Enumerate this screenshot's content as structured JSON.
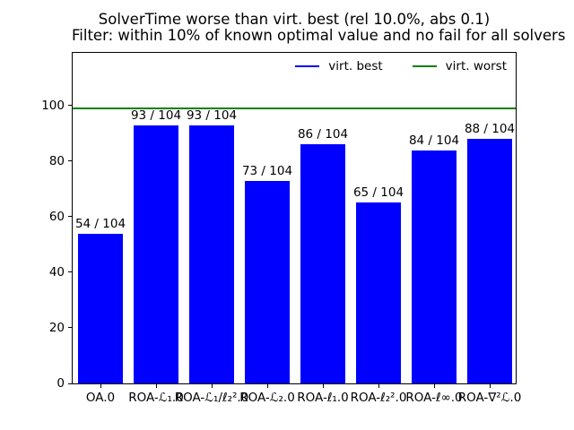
{
  "figure": {
    "title_line1": "SolverTime worse than virt. best (rel 10.0%, abs 0.1)",
    "title_line2": "Filter: within 10% of known optimal value and no fail for all solvers"
  },
  "legend": {
    "entries": [
      {
        "name": "virt-best-line",
        "label": "virt. best",
        "color": "#0000ff"
      },
      {
        "name": "virt-worst-line",
        "label": "virt. worst",
        "color": "#008000"
      }
    ]
  },
  "chart_data": {
    "type": "bar",
    "title": "SolverTime worse than virt. best (rel 10.0%, abs 0.1)\nFilter: within 10% of known optimal value and no fail for all solvers",
    "categories": [
      "OA.0",
      "ROA-ℒ₁.0",
      "ROA-ℒ₁/ℓ₂².0",
      "ROA-ℒ₂.0",
      "ROA-ℓ₁.0",
      "ROA-ℓ₂².0",
      "ROA-ℓ∞.0",
      "ROA-∇²ℒ.0"
    ],
    "values": [
      54,
      93,
      93,
      73,
      86,
      65,
      84,
      88
    ],
    "bar_labels": [
      "54 / 104",
      "93 / 104",
      "93 / 104",
      "73 / 104",
      "86 / 104",
      "65 / 104",
      "84 / 104",
      "88 / 104"
    ],
    "denominator": 104,
    "bar_color": "#0000ff",
    "series_name": "virt. best",
    "reference_lines": [
      {
        "name": "virt. worst",
        "value": 99,
        "color": "#008000"
      }
    ],
    "yticks": [
      0,
      20,
      40,
      60,
      80,
      100
    ],
    "ylim": [
      0,
      119
    ],
    "xlabel": "",
    "ylabel": "",
    "grid": false,
    "legend_entries": [
      "virt. best",
      "virt. worst"
    ],
    "legend_position": "upper right",
    "legend_frame": false
  }
}
